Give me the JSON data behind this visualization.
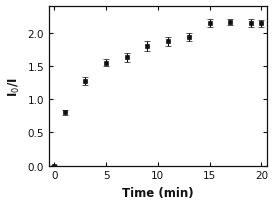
{
  "x": [
    0,
    1,
    3,
    5,
    7,
    9,
    11,
    13,
    15,
    17,
    19,
    20
  ],
  "y": [
    0.0,
    0.8,
    1.27,
    1.55,
    1.63,
    1.8,
    1.87,
    1.93,
    2.15,
    2.16,
    2.15,
    2.14
  ],
  "yerr": [
    0.01,
    0.04,
    0.06,
    0.05,
    0.07,
    0.07,
    0.07,
    0.06,
    0.06,
    0.05,
    0.06,
    0.05
  ],
  "xlabel": "Time (min)",
  "ylabel": "I$_0$/I",
  "xlim": [
    -0.5,
    20.5
  ],
  "ylim": [
    0.0,
    2.4
  ],
  "yticks": [
    0.0,
    0.5,
    1.0,
    1.5,
    2.0
  ],
  "xticks": [
    0,
    5,
    10,
    15,
    20
  ],
  "line_color": "#111111",
  "marker": "s",
  "markersize": 3.5,
  "capsize": 2.0,
  "linewidth": 1.1,
  "background_color": "#ffffff",
  "spine_color": "#111111"
}
